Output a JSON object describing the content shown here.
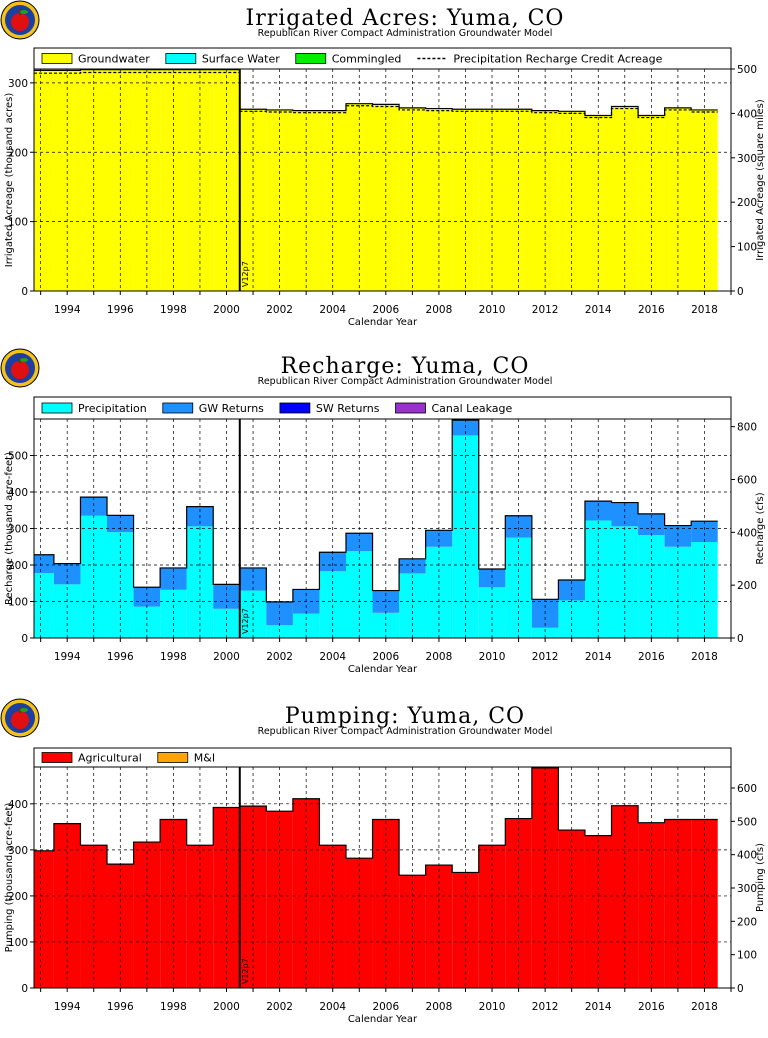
{
  "app": {
    "subtitle": "Republican River Compact Administration Groundwater Model",
    "marker_label": "V12p7",
    "marker_year": 2000.5
  },
  "panels": [
    {
      "title": "Irrigated  Acres:  Yuma,  CO",
      "xlabel": "Calendar  Year",
      "ylabel": "Irrigated  Acreage  (thousand  acres)",
      "ylabel_right": "Irrigated  Acreage  (square  miles)",
      "show_xlabel": true,
      "legend": [
        {
          "label": "Groundwater",
          "color": "#ffff00",
          "kind": "box"
        },
        {
          "label": "Surface  Water",
          "color": "#00ffff",
          "kind": "box"
        },
        {
          "label": "Commingled",
          "color": "#00ee00",
          "kind": "box"
        },
        {
          "label": "Precipitation  Recharge  Credit  Acreage",
          "color": "#000000",
          "kind": "dash"
        }
      ]
    },
    {
      "title": "Recharge:  Yuma,  CO",
      "xlabel": "Calendar  Year",
      "ylabel": "Recharge  (thousand  acre-feet)",
      "ylabel_right": "Recharge  (cfs)",
      "show_xlabel": true,
      "legend": [
        {
          "label": "Precipitation",
          "color": "#00ffff",
          "kind": "box"
        },
        {
          "label": "GW  Returns",
          "color": "#1e90ff",
          "kind": "box"
        },
        {
          "label": "SW  Returns",
          "color": "#0000ff",
          "kind": "box"
        },
        {
          "label": "Canal  Leakage",
          "color": "#9932cc",
          "kind": "box"
        }
      ]
    },
    {
      "title": "Pumping:  Yuma,  CO",
      "xlabel": "Calendar  Year",
      "ylabel": "Pumping  (thousand  acre-feet)",
      "ylabel_right": "Pumping  (cfs)",
      "show_xlabel": true,
      "legend": [
        {
          "label": "Agricultural",
          "color": "#ff0000",
          "kind": "box"
        },
        {
          "label": "M&I",
          "color": "#ffa500",
          "kind": "box"
        }
      ]
    }
  ],
  "chart_data": [
    {
      "type": "area",
      "title": "Irrigated  Acres:  Yuma,  CO",
      "subtitle": "Republican River Compact Administration Groundwater Model",
      "xlabel": "Calendar  Year",
      "ylabel": "Irrigated  Acreage  (thousand  acres)",
      "ylabel_right": "Irrigated  Acreage  (square  miles)",
      "xlim": [
        1992.75,
        2019
      ],
      "ylim": [
        0,
        320
      ],
      "ylim_right": [
        0,
        500
      ],
      "xticks": [
        1994,
        1996,
        1998,
        2000,
        2002,
        2004,
        2006,
        2008,
        2010,
        2012,
        2014,
        2016,
        2018
      ],
      "yticks": [
        0,
        100,
        200,
        300
      ],
      "yticks_right": [
        0,
        100,
        200,
        300,
        400,
        500
      ],
      "grid": true,
      "legend_position": "top",
      "x": [
        1993,
        1994,
        1995,
        1996,
        1997,
        1998,
        1999,
        2000,
        2001,
        2002,
        2003,
        2004,
        2005,
        2006,
        2007,
        2008,
        2009,
        2010,
        2011,
        2012,
        2013,
        2014,
        2015,
        2016,
        2017,
        2018
      ],
      "series": [
        {
          "name": "Groundwater",
          "color": "#ffff00",
          "values": [
            318,
            318,
            319,
            319,
            319,
            319,
            319,
            319,
            262,
            261,
            260,
            260,
            270,
            269,
            264,
            263,
            262,
            262,
            262,
            260,
            259,
            253,
            266,
            253,
            264,
            261
          ]
        },
        {
          "name": "Surface  Water",
          "color": "#00ffff",
          "values": [
            0,
            0,
            0,
            0,
            0,
            0,
            0,
            0,
            0,
            0,
            0,
            0,
            0,
            0,
            0,
            0,
            0,
            0,
            0,
            0,
            0,
            0,
            0,
            0,
            0,
            0
          ]
        },
        {
          "name": "Commingled",
          "color": "#00ee00",
          "values": [
            0,
            0,
            0,
            0,
            0,
            0,
            0,
            0,
            0,
            0,
            0,
            0,
            0,
            0,
            0,
            0,
            0,
            0,
            0,
            0,
            0,
            0,
            0,
            0,
            0,
            0
          ]
        },
        {
          "name": "Precipitation  Recharge  Credit  Acreage",
          "color": "#000000",
          "style": "dashed",
          "values": [
            314,
            314,
            315,
            315,
            315,
            315,
            315,
            315,
            259,
            258,
            257,
            257,
            267,
            266,
            261,
            260,
            259,
            259,
            259,
            257,
            256,
            250,
            263,
            250,
            261,
            258
          ]
        }
      ]
    },
    {
      "type": "area",
      "title": "Recharge:  Yuma,  CO",
      "subtitle": "Republican River Compact Administration Groundwater Model",
      "xlabel": "Calendar  Year",
      "ylabel": "Recharge  (thousand  acre-feet)",
      "ylabel_right": "Recharge  (cfs)",
      "xlim": [
        1992.75,
        2019
      ],
      "ylim": [
        0,
        600
      ],
      "ylim_right": [
        0,
        829
      ],
      "xticks": [
        1994,
        1996,
        1998,
        2000,
        2002,
        2004,
        2006,
        2008,
        2010,
        2012,
        2014,
        2016,
        2018
      ],
      "yticks": [
        0,
        100,
        200,
        300,
        400,
        500
      ],
      "yticks_right": [
        0,
        200,
        400,
        600,
        800
      ],
      "grid": true,
      "legend_position": "top",
      "x": [
        1993,
        1994,
        1995,
        1996,
        1997,
        1998,
        1999,
        2000,
        2001,
        2002,
        2003,
        2004,
        2005,
        2006,
        2007,
        2008,
        2009,
        2010,
        2011,
        2012,
        2013,
        2014,
        2015,
        2016,
        2017,
        2018
      ],
      "series": [
        {
          "name": "Precipitation",
          "color": "#00ffff",
          "values": [
            178,
            147,
            335,
            290,
            86,
            132,
            306,
            80,
            130,
            35,
            67,
            183,
            238,
            69,
            177,
            250,
            555,
            139,
            275,
            28,
            103,
            322,
            306,
            282,
            250,
            263
          ]
        },
        {
          "name": "GW  Returns",
          "color": "#1e90ff",
          "values": [
            50,
            57,
            51,
            46,
            53,
            60,
            54,
            67,
            62,
            64,
            66,
            52,
            49,
            61,
            40,
            45,
            42,
            50,
            60,
            78,
            56,
            53,
            65,
            58,
            58,
            57
          ]
        },
        {
          "name": "SW  Returns",
          "color": "#0000ff",
          "values": [
            0,
            0,
            0,
            0,
            0,
            0,
            0,
            0,
            0,
            0,
            0,
            0,
            0,
            0,
            0,
            0,
            0,
            0,
            0,
            0,
            0,
            0,
            0,
            0,
            0,
            0
          ]
        },
        {
          "name": "Canal  Leakage",
          "color": "#9932cc",
          "values": [
            0,
            0,
            0,
            0,
            0,
            0,
            0,
            0,
            0,
            0,
            0,
            0,
            0,
            0,
            0,
            0,
            0,
            0,
            0,
            0,
            0,
            0,
            0,
            0,
            0,
            0
          ]
        }
      ]
    },
    {
      "type": "area",
      "title": "Pumping:  Yuma,  CO",
      "subtitle": "Republican River Compact Administration Groundwater Model",
      "xlabel": "Calendar  Year",
      "ylabel": "Pumping  (thousand  acre-feet)",
      "ylabel_right": "Pumping  (cfs)",
      "xlim": [
        1992.75,
        2019
      ],
      "ylim": [
        0,
        480
      ],
      "ylim_right": [
        0,
        663
      ],
      "xticks": [
        1994,
        1996,
        1998,
        2000,
        2002,
        2004,
        2006,
        2008,
        2010,
        2012,
        2014,
        2016,
        2018
      ],
      "yticks": [
        0,
        100,
        200,
        300,
        400
      ],
      "yticks_right": [
        0,
        100,
        200,
        300,
        400,
        500,
        600
      ],
      "grid": true,
      "legend_position": "top",
      "x": [
        1993,
        1994,
        1995,
        1996,
        1997,
        1998,
        1999,
        2000,
        2001,
        2002,
        2003,
        2004,
        2005,
        2006,
        2007,
        2008,
        2009,
        2010,
        2011,
        2012,
        2013,
        2014,
        2015,
        2016,
        2017,
        2018
      ],
      "series": [
        {
          "name": "Agricultural",
          "color": "#ff0000",
          "values": [
            298,
            357,
            310,
            269,
            317,
            366,
            310,
            392,
            395,
            384,
            411,
            310,
            282,
            366,
            245,
            267,
            251,
            310,
            368,
            478,
            343,
            331,
            396,
            359,
            366,
            366
          ]
        },
        {
          "name": "M&I",
          "color": "#ffa500",
          "values": [
            0,
            0,
            0,
            0,
            0,
            0,
            0,
            0,
            0,
            0,
            0,
            0,
            0,
            0,
            0,
            0,
            0,
            0,
            0,
            0,
            0,
            0,
            0,
            0,
            0,
            0
          ]
        }
      ]
    }
  ]
}
